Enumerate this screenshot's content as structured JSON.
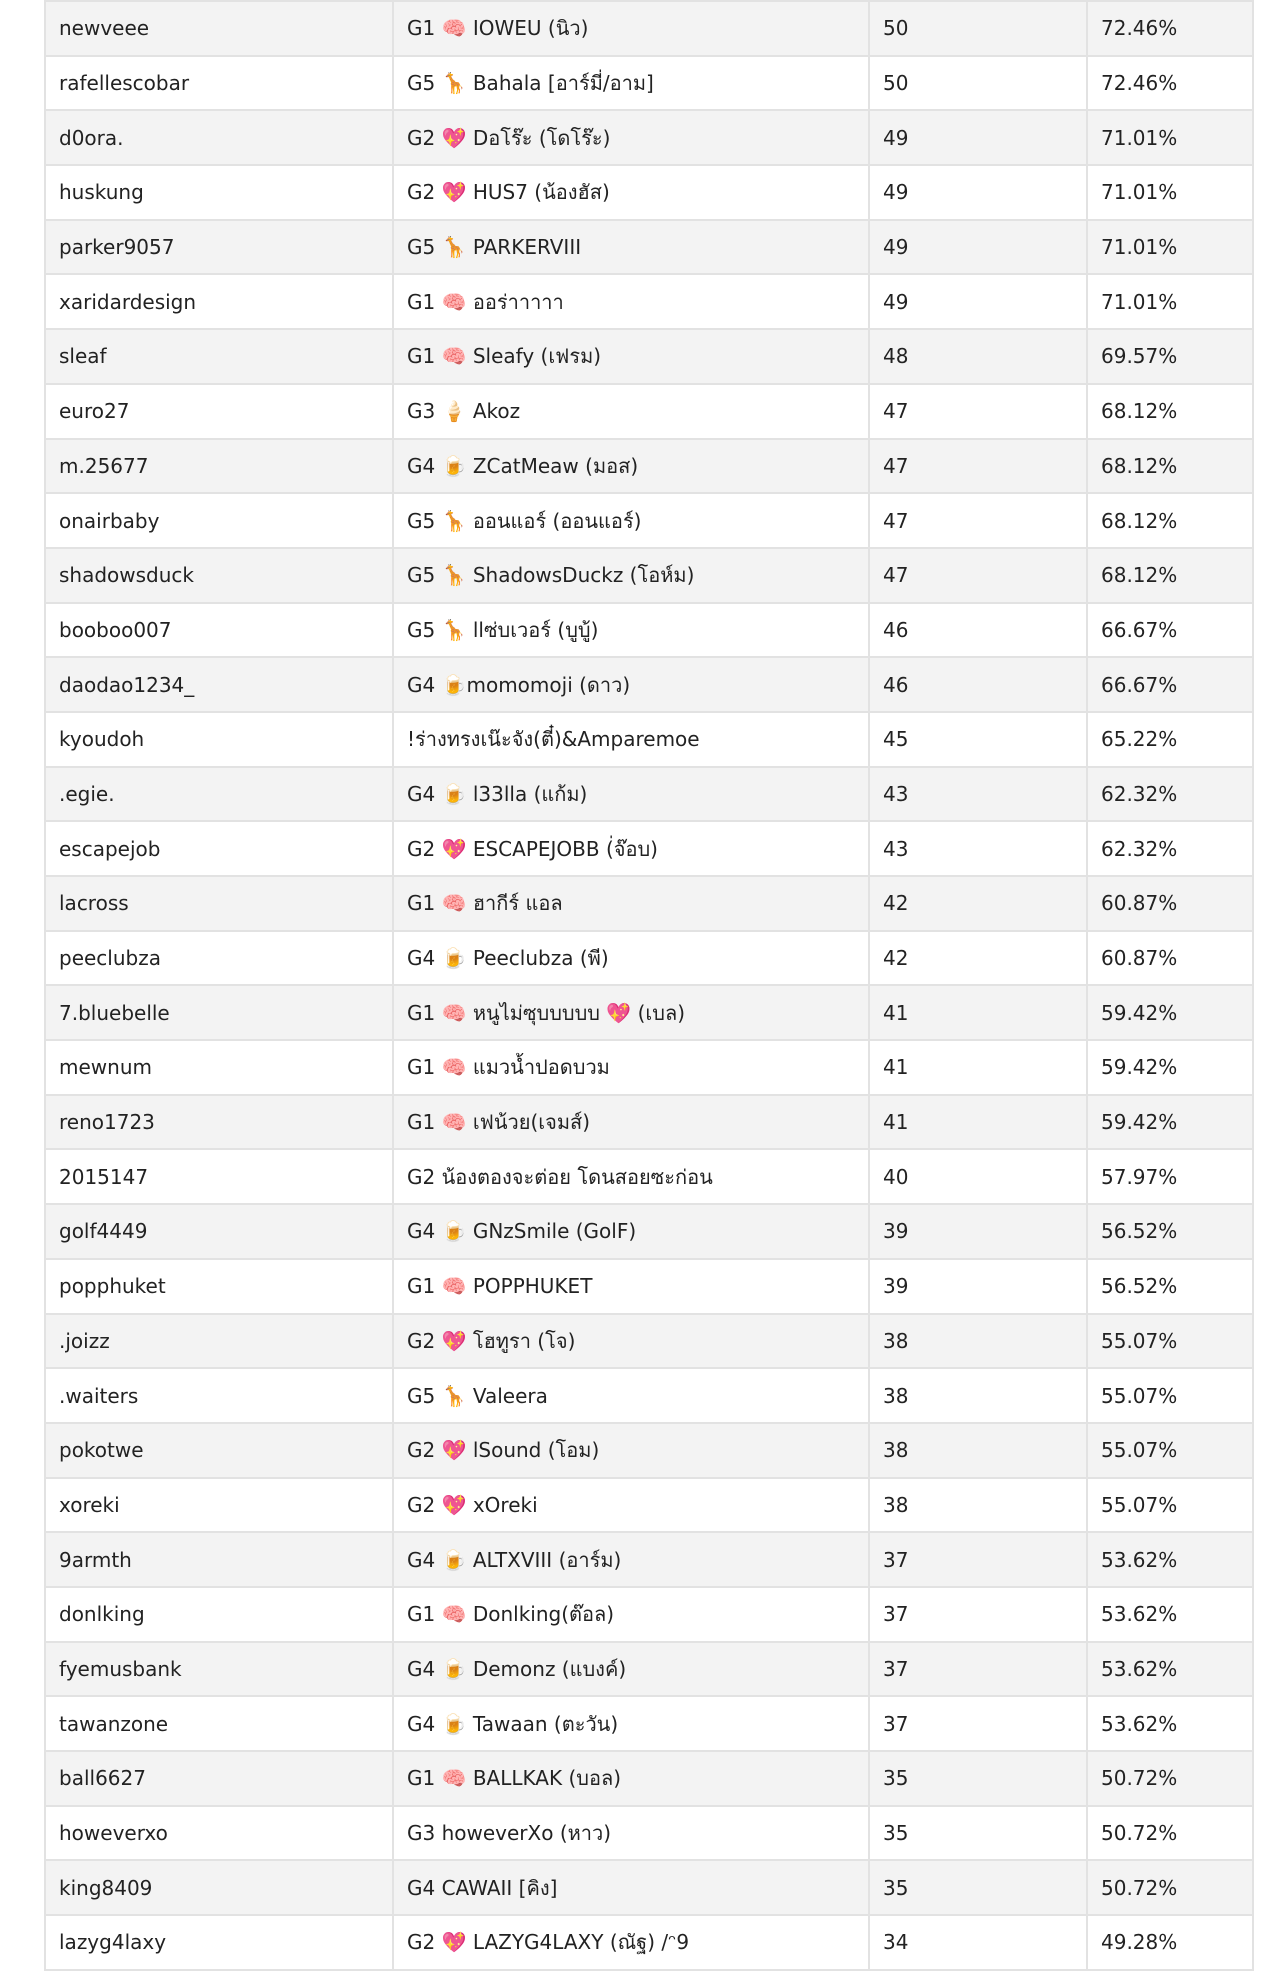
{
  "table": {
    "rows": [
      {
        "username": "newveee",
        "nickname": "G1 🧠 IOWEU (นิว)",
        "score": "50",
        "percent": "72.46%"
      },
      {
        "username": "rafellescobar",
        "nickname": "G5 🦒 Bahala [อาร์มี่/อาม]",
        "score": "50",
        "percent": "72.46%"
      },
      {
        "username": "d0ora.",
        "nickname": "G2 💖 Dอโร๊ะ (โดโร๊ะ)",
        "score": "49",
        "percent": "71.01%"
      },
      {
        "username": "huskung",
        "nickname": "G2 💖 HUS7 (น้องฮัส)",
        "score": "49",
        "percent": "71.01%"
      },
      {
        "username": "parker9057",
        "nickname": "G5 🦒 PARKERVIII",
        "score": "49",
        "percent": "71.01%"
      },
      {
        "username": "xaridardesign",
        "nickname": "G1 🧠 ออร่าาาาา",
        "score": "49",
        "percent": "71.01%"
      },
      {
        "username": "sleaf",
        "nickname": "G1 🧠 Sleafy (เฟรม)",
        "score": "48",
        "percent": "69.57%"
      },
      {
        "username": "euro27",
        "nickname": "G3 🍦 Akoz",
        "score": "47",
        "percent": "68.12%"
      },
      {
        "username": "m.25677",
        "nickname": "G4 🍺 ZCatMeaw (มอส)",
        "score": "47",
        "percent": "68.12%"
      },
      {
        "username": "onairbaby",
        "nickname": "G5 🦒 ออนแอร์ (ออนแอร์)",
        "score": "47",
        "percent": "68.12%"
      },
      {
        "username": "shadowsduck",
        "nickname": "G5 🦒 ShadowsDuckz (โอห์ม)",
        "score": "47",
        "percent": "68.12%"
      },
      {
        "username": "booboo007",
        "nickname": "G5 🦒 llซ่บเวอร์ (บูบู้)",
        "score": "46",
        "percent": "66.67%"
      },
      {
        "username": "daodao1234_",
        "nickname": "G4 🍺momomoji (ดาว)",
        "score": "46",
        "percent": "66.67%"
      },
      {
        "username": "kyoudoh",
        "nickname": "!ร่างทรงเน๊ะจัง(ตี๋)&Amparemoe",
        "score": "45",
        "percent": "65.22%"
      },
      {
        "username": ".egie.",
        "nickname": "G4 🍺 l33lla (แก้ม)",
        "score": "43",
        "percent": "62.32%"
      },
      {
        "username": "escapejob",
        "nickname": "G2 💖 ESCAPEJOBB (่จ๊อบ)",
        "score": "43",
        "percent": "62.32%"
      },
      {
        "username": "lacross",
        "nickname": "G1 🧠 ฮากีร์ แอล",
        "score": "42",
        "percent": "60.87%"
      },
      {
        "username": "peeclubza",
        "nickname": "G4 🍺 Peeclubza (พี)",
        "score": "42",
        "percent": "60.87%"
      },
      {
        "username": "7.bluebelle",
        "nickname": "G1 🧠 หนูไม่ซุบบบบบ 💖 (เบล)",
        "score": "41",
        "percent": "59.42%"
      },
      {
        "username": "mewnum",
        "nickname": "G1 🧠 แมวน้ำปอดบวม",
        "score": "41",
        "percent": "59.42%"
      },
      {
        "username": "reno1723",
        "nickname": "G1 🧠 เฟน้วย(เจมส์)",
        "score": "41",
        "percent": "59.42%"
      },
      {
        "username": "2015147",
        "nickname": "G2 น้องตองจะต่อย โดนสอยซะก่อน",
        "score": "40",
        "percent": "57.97%"
      },
      {
        "username": "golf4449",
        "nickname": "G4 🍺 GNzSmile (GolF)",
        "score": "39",
        "percent": "56.52%"
      },
      {
        "username": "popphuket",
        "nickname": "G1 🧠 POPPHUKET",
        "score": "39",
        "percent": "56.52%"
      },
      {
        "username": ".joizz",
        "nickname": "G2 💖 โฮทูรา (โจ)",
        "score": "38",
        "percent": "55.07%"
      },
      {
        "username": ".waiters",
        "nickname": "G5 🦒 Valeera",
        "score": "38",
        "percent": "55.07%"
      },
      {
        "username": "pokotwe",
        "nickname": "G2 💖 lSound (โอม)",
        "score": "38",
        "percent": "55.07%"
      },
      {
        "username": "xoreki",
        "nickname": "G2 💖 xOreki",
        "score": "38",
        "percent": "55.07%"
      },
      {
        "username": "9armth",
        "nickname": "G4 🍺 ALTXVIII (อาร์ม)",
        "score": "37",
        "percent": "53.62%"
      },
      {
        "username": "donlking",
        "nickname": "G1 🧠 Donlking(ต๊อล)",
        "score": "37",
        "percent": "53.62%"
      },
      {
        "username": "fyemusbank",
        "nickname": "G4 🍺 Demonz (แบงค์)",
        "score": "37",
        "percent": "53.62%"
      },
      {
        "username": "tawanzone",
        "nickname": "G4 🍺 Tawaan (ตะวัน)",
        "score": "37",
        "percent": "53.62%"
      },
      {
        "username": "ball6627",
        "nickname": "G1 🧠 BALLKAK (บอล)",
        "score": "35",
        "percent": "50.72%"
      },
      {
        "username": "howeverxo",
        "nickname": "G3 howeverXo (หาว)",
        "score": "35",
        "percent": "50.72%"
      },
      {
        "username": "king8409",
        "nickname": "G4 CAWAII [คิง]",
        "score": "35",
        "percent": "50.72%"
      },
      {
        "username": "lazyg4laxy",
        "nickname": "G2 💖 LAZYG4LAXY (ณัฐ) /ᵔ9",
        "score": "34",
        "percent": "49.28%"
      }
    ]
  }
}
